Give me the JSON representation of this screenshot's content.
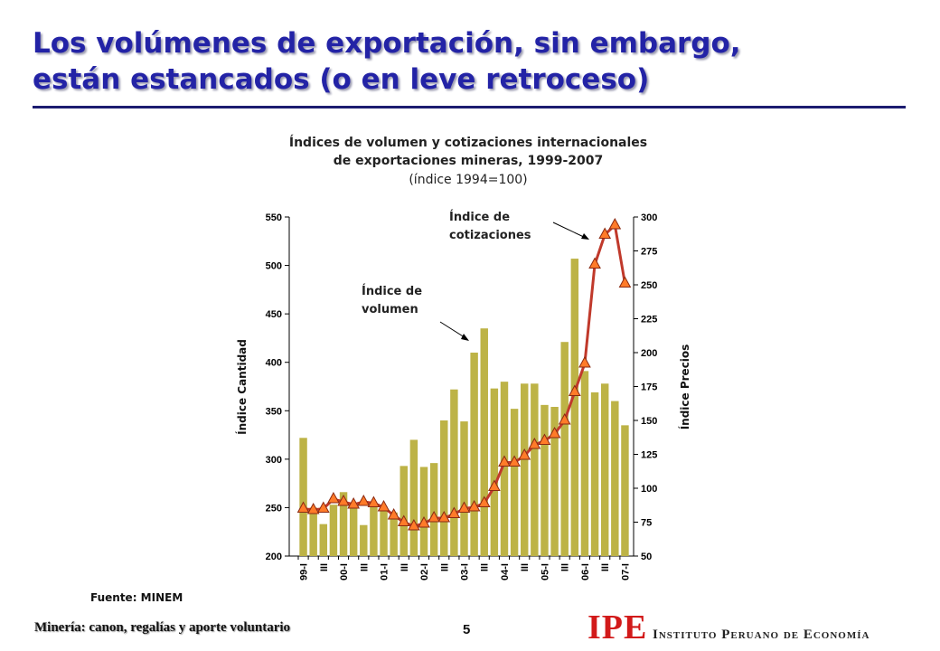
{
  "header": {
    "title": [
      "Los volúmenes de exportación, sin embargo,",
      "están estancados (o en leve retroceso)"
    ]
  },
  "chart_data": {
    "type": "bar-line",
    "title": [
      "Índices de volumen y cotizaciones internacionales",
      "de exportaciones mineras, 1999-2007"
    ],
    "subtitle": "(índice 1994=100)",
    "ylabel": "Índice Cantidad",
    "y2label": "Índice Precios",
    "categories": [
      "99-I",
      null,
      "III",
      null,
      "00-I",
      null,
      "III",
      null,
      "01-I",
      null,
      "III",
      null,
      "02-I",
      null,
      "III",
      null,
      "03-I",
      null,
      "III",
      null,
      "04-I",
      null,
      "III",
      null,
      "05-I",
      null,
      "III",
      null,
      "06-I",
      null,
      "III",
      null,
      "07-I"
    ],
    "series": [
      {
        "name": "Índice de volumen",
        "type": "bar",
        "color": "#bdb346",
        "values": [
          322,
          250,
          233,
          253,
          266,
          252,
          232,
          254,
          251,
          245,
          293,
          320,
          292,
          296,
          340,
          372,
          339,
          410,
          435,
          373,
          380,
          352,
          378,
          378,
          356,
          354,
          421,
          507,
          391,
          369,
          378,
          360,
          335
        ]
      },
      {
        "name": "Índice de cotizaciones",
        "type": "line",
        "axis": "y2",
        "color": "#c0392b",
        "marker_color": "#ff7b29",
        "values": [
          85,
          84,
          85,
          92,
          90,
          88,
          90,
          89,
          86,
          80,
          75,
          72,
          74,
          78,
          78,
          81,
          85,
          86,
          89,
          101,
          119,
          119,
          124,
          132,
          135,
          140,
          150,
          171,
          192,
          265,
          287,
          294,
          251
        ]
      }
    ],
    "ylim": [
      200,
      550
    ],
    "yticks": [
      200,
      250,
      300,
      350,
      400,
      450,
      500,
      550
    ],
    "y2lim": [
      50,
      300
    ],
    "y2ticks": [
      50,
      75,
      100,
      125,
      150,
      175,
      200,
      225,
      250,
      275,
      300
    ],
    "source": "Fuente: MINEM"
  },
  "footer": {
    "text": "Minería: canon, regalías y aporte voluntario",
    "page": "5",
    "logo": "IPE",
    "organization": "Instituto Peruano de Economía"
  }
}
